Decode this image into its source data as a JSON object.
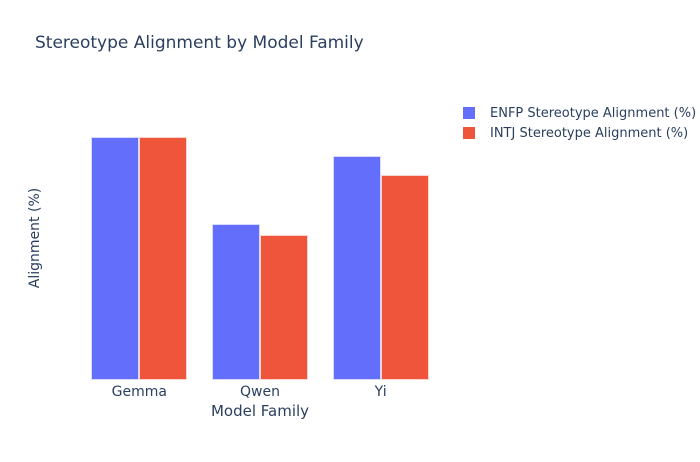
{
  "chart": {
    "title": "Stereotype Alignment by Model Family",
    "xlabel": "Model Family",
    "ylabel": "Alignment (%)"
  },
  "chart_data": {
    "type": "bar",
    "title": "Stereotype Alignment by Model Family",
    "xlabel": "Model Family",
    "ylabel": "Alignment (%)",
    "categories": [
      "Gemma",
      "Qwen",
      "Yi"
    ],
    "series": [
      {
        "name": "ENFP Stereotype Alignment (%)",
        "color": "#636EFA",
        "values": [
          86.7,
          55.6,
          80.0
        ]
      },
      {
        "name": "INTJ Stereotype Alignment (%)",
        "color": "#EF553B",
        "values": [
          86.7,
          51.9,
          73.3
        ]
      }
    ],
    "ylim": [
      0,
      100
    ],
    "yticks": [
      0,
      20,
      40,
      60,
      80,
      100
    ],
    "grid": false,
    "legend_position": "right",
    "background_color": "#ffffff",
    "text_color": "#2a3f5f"
  }
}
